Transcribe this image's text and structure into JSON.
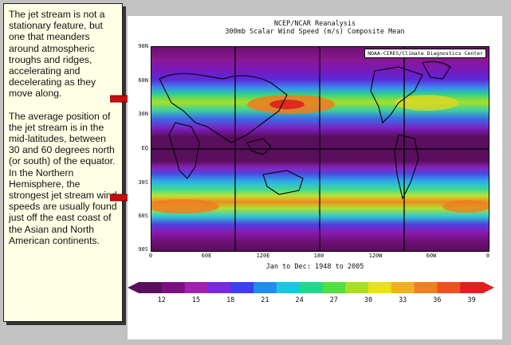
{
  "panel": {
    "paragraph1": "The jet stream is not a stationary feature, but one that meanders around atmospheric troughs and ridges, accelerating and decelerating as they move along.",
    "paragraph2": "The average position of the jet stream is in the mid-latitudes, between 30 and 60 degrees north (or south) of the equator. In the Northern Hemisphere, the strongest jet stream wind speeds are usually found just off the east coast of the Asian and North American continents."
  },
  "figure": {
    "title_line1": "NCEP/NCAR Reanalysis",
    "title_line2": "300mb Scalar Wind Speed (m/s) Composite Mean",
    "credit": "NOAA-CIRES/Climate Diagnostics Center",
    "lat_labels": [
      "90N",
      "60N",
      "30N",
      "EQ",
      "30S",
      "60S",
      "90S"
    ],
    "lon_labels": [
      "0",
      "60E",
      "120E",
      "180",
      "120W",
      "60W",
      "0"
    ],
    "caption": "Jan to Dec: 1948 to 2005",
    "colorbar": {
      "labels": [
        "12",
        "15",
        "18",
        "21",
        "24",
        "27",
        "30",
        "33",
        "36",
        "39"
      ],
      "colors": [
        "#5a0e5e",
        "#7a1080",
        "#a020b0",
        "#7a28e0",
        "#3c3cf0",
        "#1e8cf0",
        "#18c8e0",
        "#20d890",
        "#50e040",
        "#a8e020",
        "#e8e020",
        "#f0b020",
        "#f08020",
        "#f05020",
        "#e02020"
      ]
    }
  },
  "arrows": {
    "color": "#c80f0f"
  }
}
